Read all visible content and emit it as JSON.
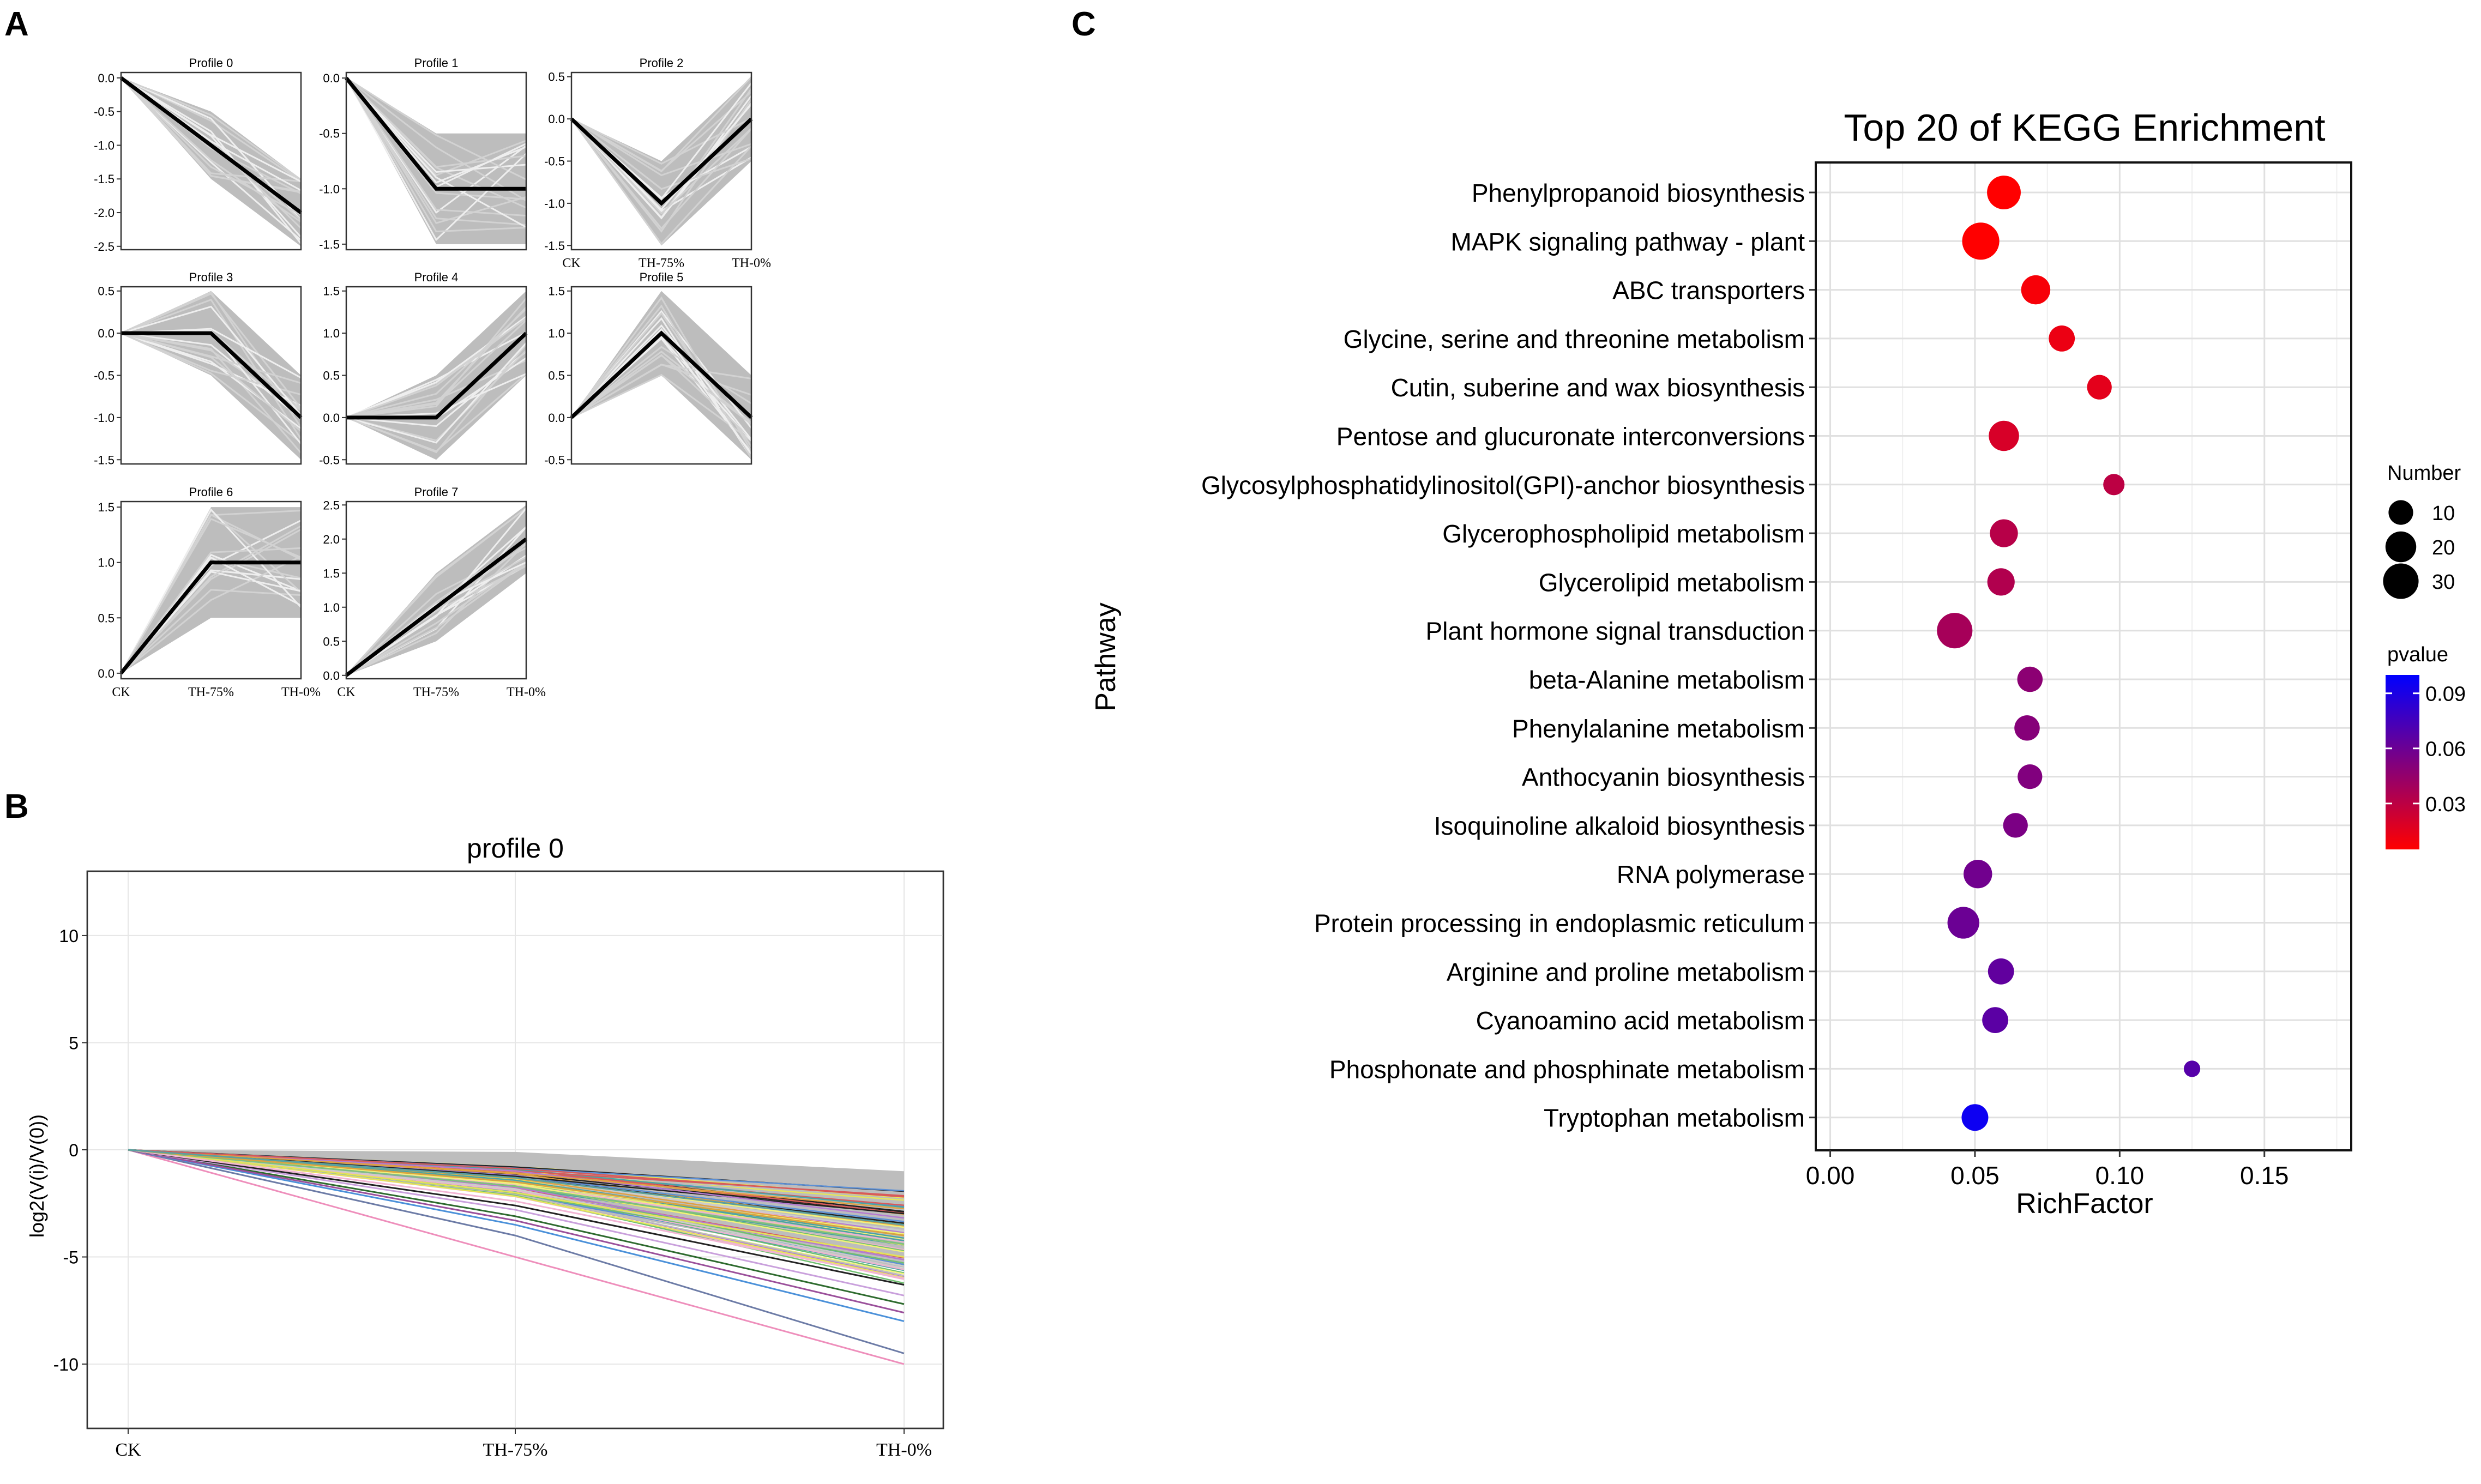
{
  "panel_labels": [
    "A",
    "B",
    "C"
  ],
  "colors": {
    "bundle": "#bdbdbd",
    "bundle_light": "#d2d2d2",
    "median": "#000000",
    "frame": "#333333",
    "grid": "#e6e6e6",
    "pvalue_low": "#ff0000",
    "pvalue_high": "#0000ff"
  },
  "chart_data": [
    {
      "id": "A",
      "type": "line",
      "description": "STEM expression profiles (panel A)",
      "x": [
        "CK",
        "TH-75%",
        "TH-0%"
      ],
      "profiles": [
        {
          "title": "Profile 0",
          "yticks": [
            "0.0",
            "-0.5",
            "-1.0",
            "-1.5",
            "-2.0",
            "-2.5"
          ],
          "ylim": [
            -2.55,
            0.08
          ],
          "median": [
            0,
            -1,
            -2
          ],
          "low": [
            0,
            -1.5,
            -2.5
          ],
          "high": [
            0,
            -0.5,
            -1.5
          ],
          "xlabels": false
        },
        {
          "title": "Profile 1",
          "yticks": [
            "0.0",
            "-0.5",
            "-1.0",
            "-1.5"
          ],
          "ylim": [
            -1.55,
            0.05
          ],
          "median": [
            0,
            -1,
            -1
          ],
          "low": [
            0,
            -1.5,
            -1.5
          ],
          "high": [
            0,
            -0.5,
            -0.5
          ],
          "xlabels": false
        },
        {
          "title": "Profile 2",
          "yticks": [
            "0.5",
            "0.0",
            "-0.5",
            "-1.0",
            "-1.5"
          ],
          "ylim": [
            -1.55,
            0.55
          ],
          "median": [
            0,
            -1,
            0
          ],
          "low": [
            0,
            -1.5,
            -0.5
          ],
          "high": [
            0,
            -0.5,
            0.5
          ],
          "xlabels": true
        },
        {
          "title": "Profile 3",
          "yticks": [
            "0.5",
            "0.0",
            "-0.5",
            "-1.0",
            "-1.5"
          ],
          "ylim": [
            -1.55,
            0.55
          ],
          "median": [
            0,
            0,
            -1
          ],
          "low": [
            0,
            -0.5,
            -1.5
          ],
          "high": [
            0,
            0.5,
            -0.5
          ],
          "xlabels": false
        },
        {
          "title": "Profile 4",
          "yticks": [
            "1.5",
            "1.0",
            "0.5",
            "0.0",
            "-0.5"
          ],
          "ylim": [
            -0.55,
            1.55
          ],
          "median": [
            0,
            0,
            1
          ],
          "low": [
            0,
            -0.5,
            0.5
          ],
          "high": [
            0,
            0.5,
            1.5
          ],
          "xlabels": false
        },
        {
          "title": "Profile 5",
          "yticks": [
            "1.5",
            "1.0",
            "0.5",
            "0.0",
            "-0.5"
          ],
          "ylim": [
            -0.55,
            1.55
          ],
          "median": [
            0,
            1,
            0
          ],
          "low": [
            0,
            0.5,
            -0.5
          ],
          "high": [
            0,
            1.5,
            0.5
          ],
          "xlabels": false
        },
        {
          "title": "Profile 6",
          "yticks": [
            "1.5",
            "1.0",
            "0.5",
            "0.0"
          ],
          "ylim": [
            -0.05,
            1.55
          ],
          "median": [
            0,
            1,
            1
          ],
          "low": [
            0,
            0.5,
            0.5
          ],
          "high": [
            0,
            1.5,
            1.5
          ],
          "xlabels": true
        },
        {
          "title": "Profile 7",
          "yticks": [
            "2.5",
            "2.0",
            "1.5",
            "1.0",
            "0.5",
            "0.0"
          ],
          "ylim": [
            -0.05,
            2.55
          ],
          "median": [
            0,
            1,
            2
          ],
          "low": [
            0,
            0.5,
            1.5
          ],
          "high": [
            0,
            1.5,
            2.5
          ],
          "xlabels": true
        }
      ]
    },
    {
      "id": "B",
      "type": "line",
      "title": "profile 0",
      "ylabel": "log2(V(i)/V(0))",
      "x": [
        "CK",
        "TH-75%",
        "TH-0%"
      ],
      "yticks": [
        "10",
        "5",
        "0",
        "-5",
        "-10"
      ],
      "ylim": [
        -13,
        13
      ],
      "highlighted_series": [
        {
          "color": "#ee8ebb",
          "values": [
            0,
            -5,
            -10
          ]
        },
        {
          "color": "#6c7ba6",
          "values": [
            0,
            -4,
            -9.5
          ]
        },
        {
          "color": "#4a90d9",
          "values": [
            0,
            -3.5,
            -8
          ]
        },
        {
          "color": "#2d6a2d",
          "values": [
            0,
            -3.1,
            -7.2
          ]
        },
        {
          "color": "#9a4f9a",
          "values": [
            0,
            -3.3,
            -7.6
          ]
        },
        {
          "color": "#c9a0dc",
          "values": [
            0,
            -2.8,
            -6.8
          ]
        },
        {
          "color": "#e2e25a",
          "values": [
            0,
            -2.0,
            -5.0
          ]
        },
        {
          "color": "#222222",
          "values": [
            0,
            -2.6,
            -6.3
          ]
        },
        {
          "color": "#f2b5d4",
          "values": [
            0,
            -2.4,
            -6.0
          ]
        },
        {
          "color": "#7fbf7f",
          "values": [
            0,
            -1.7,
            -4.4
          ]
        },
        {
          "color": "#d9a441",
          "values": [
            0,
            -1.5,
            -4.0
          ]
        },
        {
          "color": "#5aa0a0",
          "values": [
            0,
            -1.3,
            -3.5
          ]
        }
      ],
      "bundle_range": {
        "mid": [
          0,
          -0.1,
          -1.0
        ],
        "low": [
          0,
          -2.2,
          -5.5
        ]
      }
    },
    {
      "id": "C",
      "type": "scatter",
      "title": "Top 20 of KEGG Enrichment",
      "xlabel": "RichFactor",
      "ylabel": "Pathway",
      "xlim": [
        -0.005,
        0.18
      ],
      "xticks": [
        0,
        0.05,
        0.1,
        0.15
      ],
      "xtick_labels": [
        "0.00",
        "0.05",
        "0.10",
        "0.15"
      ],
      "size_legend": {
        "title": "Number",
        "values": [
          10,
          20,
          30
        ],
        "labels": [
          "10",
          "20",
          "30"
        ]
      },
      "color_legend": {
        "title": "pvalue",
        "min": 0.005,
        "max": 0.1,
        "ticks": [
          0.09,
          0.06,
          0.03
        ],
        "labels": [
          "0.09",
          "0.06",
          "0.03"
        ]
      },
      "pathways": [
        {
          "name": "Phenylpropanoid biosynthesis",
          "rich": 0.06,
          "number": 26,
          "pvalue": 0.003
        },
        {
          "name": "MAPK signaling pathway - plant",
          "rich": 0.052,
          "number": 34,
          "pvalue": 0.004
        },
        {
          "name": "ABC transporters",
          "rich": 0.071,
          "number": 17,
          "pvalue": 0.008
        },
        {
          "name": "Glycine, serine and threonine metabolism",
          "rich": 0.08,
          "number": 12,
          "pvalue": 0.012
        },
        {
          "name": "Cutin, suberine and wax biosynthesis",
          "rich": 0.093,
          "number": 10,
          "pvalue": 0.015
        },
        {
          "name": "Pentose and glucuronate interconversions",
          "rich": 0.06,
          "number": 19,
          "pvalue": 0.02
        },
        {
          "name": "Glycosylphosphatidylinositol(GPI)-anchor biosynthesis",
          "rich": 0.098,
          "number": 6,
          "pvalue": 0.03
        },
        {
          "name": "Glycerophospholipid metabolism",
          "rich": 0.06,
          "number": 15,
          "pvalue": 0.032
        },
        {
          "name": "Glycerolipid metabolism",
          "rich": 0.059,
          "number": 14,
          "pvalue": 0.034
        },
        {
          "name": "Plant hormone signal transduction",
          "rich": 0.043,
          "number": 30,
          "pvalue": 0.038
        },
        {
          "name": "beta-Alanine metabolism",
          "rich": 0.069,
          "number": 11,
          "pvalue": 0.048
        },
        {
          "name": "Phenylalanine metabolism",
          "rich": 0.068,
          "number": 11,
          "pvalue": 0.05
        },
        {
          "name": "Anthocyanin biosynthesis",
          "rich": 0.069,
          "number": 10,
          "pvalue": 0.052
        },
        {
          "name": "Isoquinoline alkaloid biosynthesis",
          "rich": 0.064,
          "number": 10,
          "pvalue": 0.054
        },
        {
          "name": "RNA polymerase",
          "rich": 0.051,
          "number": 16,
          "pvalue": 0.058
        },
        {
          "name": "Protein processing in endoplasmic reticulum",
          "rich": 0.046,
          "number": 22,
          "pvalue": 0.06
        },
        {
          "name": "Arginine and proline metabolism",
          "rich": 0.059,
          "number": 12,
          "pvalue": 0.064
        },
        {
          "name": "Cyanoamino acid metabolism",
          "rich": 0.057,
          "number": 12,
          "pvalue": 0.066
        },
        {
          "name": "Phosphonate and phosphinate metabolism",
          "rich": 0.125,
          "number": 2,
          "pvalue": 0.068
        },
        {
          "name": "Tryptophan metabolism",
          "rich": 0.05,
          "number": 13,
          "pvalue": 0.095
        }
      ]
    }
  ]
}
